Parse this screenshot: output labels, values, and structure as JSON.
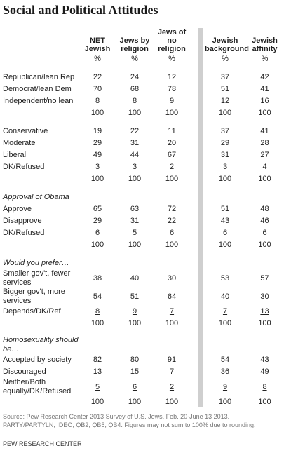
{
  "title": "Social and Political Attitudes",
  "columns": [
    "NET Jewish",
    "Jews by religion",
    "Jews of no religion",
    "Jewish background",
    "Jewish affinity"
  ],
  "unit_row": [
    "%",
    "%",
    "%",
    "%",
    "%"
  ],
  "sections": [
    {
      "rows": [
        {
          "label": "Republican/lean Rep",
          "values": [
            22,
            24,
            12,
            37,
            42
          ]
        },
        {
          "label": "Democrat/lean Dem",
          "values": [
            70,
            68,
            78,
            51,
            41
          ]
        },
        {
          "label": "Independent/no lean",
          "values": [
            8,
            8,
            9,
            12,
            16
          ]
        }
      ],
      "total": [
        100,
        100,
        100,
        100,
        100
      ]
    },
    {
      "rows": [
        {
          "label": "Conservative",
          "values": [
            19,
            22,
            11,
            37,
            41
          ]
        },
        {
          "label": "Moderate",
          "values": [
            29,
            31,
            20,
            29,
            28
          ]
        },
        {
          "label": "Liberal",
          "values": [
            49,
            44,
            67,
            31,
            27
          ]
        },
        {
          "label": "DK/Refused",
          "values": [
            3,
            3,
            2,
            3,
            4
          ]
        }
      ],
      "total": [
        100,
        100,
        100,
        100,
        100
      ]
    },
    {
      "heading": "Approval of Obama",
      "rows": [
        {
          "label": "Approve",
          "values": [
            65,
            63,
            72,
            51,
            48
          ]
        },
        {
          "label": "Disapprove",
          "values": [
            29,
            31,
            22,
            43,
            46
          ]
        },
        {
          "label": "DK/Refused",
          "values": [
            6,
            5,
            6,
            6,
            6
          ]
        }
      ],
      "total": [
        100,
        100,
        100,
        100,
        100
      ]
    },
    {
      "heading": "Would you prefer…",
      "rows": [
        {
          "label": "Smaller gov't, fewer services",
          "values": [
            38,
            40,
            30,
            53,
            57
          ]
        },
        {
          "label": "Bigger gov't, more services",
          "values": [
            54,
            51,
            64,
            40,
            30
          ]
        },
        {
          "label": "Depends/DK/Ref",
          "values": [
            8,
            9,
            7,
            7,
            13
          ]
        }
      ],
      "total": [
        100,
        100,
        100,
        100,
        100
      ]
    },
    {
      "heading": "Homosexuality should be…",
      "rows": [
        {
          "label": "Accepted by society",
          "values": [
            82,
            80,
            91,
            54,
            43
          ]
        },
        {
          "label": "Discouraged",
          "values": [
            13,
            15,
            7,
            36,
            49
          ]
        },
        {
          "label": "Neither/Both equally/DK/Refused",
          "values": [
            5,
            6,
            2,
            9,
            8
          ]
        }
      ],
      "total": [
        100,
        100,
        100,
        100,
        100
      ]
    }
  ],
  "source": "Source: Pew Research Center 2013 Survey of U.S. Jews, Feb. 20-June 13 2013. PARTY/PARTYLN, IDEO, QB2, QB5, QB4. Figures may not sum to 100% due to rounding.",
  "footer": "PEW RESEARCH CENTER"
}
